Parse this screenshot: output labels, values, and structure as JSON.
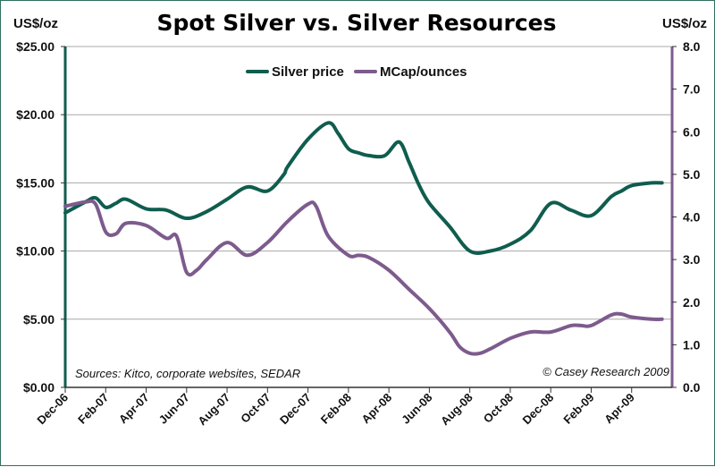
{
  "chart_data": {
    "type": "line",
    "title": "Spot Silver vs. Silver Resources",
    "left_axis": {
      "unit": "US$/oz",
      "ylim": [
        0,
        25
      ],
      "ticks": [
        0,
        5,
        10,
        15,
        20,
        25
      ],
      "tick_labels": [
        "$0.00",
        "$5.00",
        "$10.00",
        "$15.00",
        "$20.00",
        "$25.00"
      ]
    },
    "right_axis": {
      "unit": "US$/oz",
      "ylim": [
        0,
        8
      ],
      "ticks": [
        0,
        1,
        2,
        3,
        4,
        5,
        6,
        7,
        8
      ],
      "tick_labels": [
        "0.0",
        "1.0",
        "2.0",
        "3.0",
        "4.0",
        "5.0",
        "6.0",
        "7.0",
        "8.0"
      ]
    },
    "x": {
      "range": [
        0,
        30
      ],
      "ticks": [
        0,
        2,
        4,
        6,
        8,
        10,
        12,
        14,
        16,
        18,
        20,
        22,
        24,
        26,
        28
      ],
      "tick_labels": [
        "Dec-06",
        "Feb-07",
        "Apr-07",
        "Jun-07",
        "Aug-07",
        "Oct-07",
        "Dec-07",
        "Feb-08",
        "Apr-08",
        "Jun-08",
        "Aug-08",
        "Oct-08",
        "Dec-08",
        "Feb-09",
        "Apr-09"
      ]
    },
    "legend": {
      "position": "top-center",
      "items": [
        {
          "label": "Silver price",
          "series": 0
        },
        {
          "label": "MCap/ounces",
          "series": 1
        }
      ]
    },
    "series": [
      {
        "name": "Silver price",
        "axis": "left",
        "color": "#0f5d4f",
        "x": [
          0,
          1,
          1.5,
          2,
          2.5,
          3,
          4,
          5,
          6,
          7,
          8,
          9,
          10,
          10.8,
          11,
          12,
          13,
          13.5,
          14,
          14.5,
          15,
          15.8,
          16.5,
          17,
          17.5,
          18,
          19,
          20,
          21,
          22,
          23,
          24,
          25,
          26,
          27,
          27.5,
          28,
          29,
          29.5
        ],
        "y": [
          12.8,
          13.6,
          13.9,
          13.2,
          13.5,
          13.8,
          13.1,
          13.0,
          12.4,
          12.9,
          13.8,
          14.7,
          14.4,
          15.6,
          16.2,
          18.2,
          19.4,
          18.6,
          17.5,
          17.2,
          17.0,
          17.0,
          18.0,
          16.5,
          14.8,
          13.5,
          11.8,
          10.0,
          10.0,
          10.5,
          11.5,
          13.5,
          13.0,
          12.6,
          14.0,
          14.4,
          14.8,
          15.0,
          15.0
        ]
      },
      {
        "name": "MCap/ounces",
        "axis": "right",
        "color": "#7d5b8d",
        "x": [
          0,
          1,
          1.5,
          2,
          2.5,
          3,
          4,
          5,
          5.5,
          6,
          6.5,
          7,
          8,
          9,
          10,
          11,
          12,
          12.4,
          13,
          14,
          14.5,
          15,
          16,
          17,
          18,
          19,
          19.5,
          20,
          20.5,
          21,
          22,
          23,
          24,
          25,
          25.5,
          26,
          27,
          27.5,
          28,
          29,
          29.5
        ],
        "y": [
          4.25,
          4.35,
          4.3,
          3.65,
          3.6,
          3.85,
          3.8,
          3.5,
          3.55,
          2.7,
          2.75,
          3.0,
          3.4,
          3.1,
          3.4,
          3.9,
          4.3,
          4.25,
          3.55,
          3.1,
          3.1,
          3.05,
          2.75,
          2.3,
          1.85,
          1.3,
          0.95,
          0.8,
          0.8,
          0.9,
          1.15,
          1.3,
          1.3,
          1.45,
          1.45,
          1.45,
          1.7,
          1.72,
          1.65,
          1.6,
          1.6
        ]
      }
    ],
    "annotations": [
      {
        "text": "Sources: Kitco, corporate websites, SEDAR",
        "position": "bottom-left"
      },
      {
        "text": "© Casey Research 2009",
        "position": "bottom-right"
      }
    ]
  }
}
